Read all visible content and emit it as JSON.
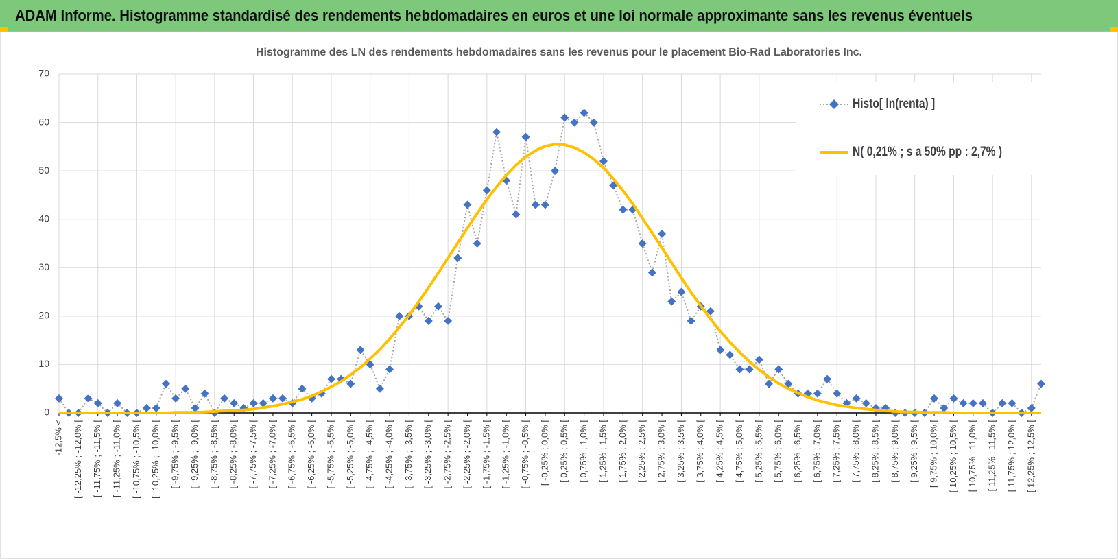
{
  "header": {
    "title": "ADAM Informe. Histogramme standardisé des rendements hebdomadaires en euros et une loi normale approximante sans les revenus éventuels"
  },
  "chart_data": {
    "type": "line",
    "title": "Histogramme des LN des rendements hebdomadaires sans les revenus pour le placement Bio-Rad Laboratories Inc.",
    "categories": [
      "-12,5% <",
      null,
      "[ -12,25% ; -12,0% [",
      null,
      "[ -11,75% ; -11,5% [",
      null,
      "[ -11,25% ; -11,0% [",
      null,
      "[ -10,75% ; -10,5% [",
      null,
      "[ -10,25% ; -10,0% [",
      null,
      "[ -9,75% ; -9,5% [",
      null,
      "[ -9,25% ; -9,0% [",
      null,
      "[ -8,75% ; -8,5% [",
      null,
      "[ -8,25% ; -8,0% [",
      null,
      "[ -7,75% ; -7,5% [",
      null,
      "[ -7,25% ; -7,0% [",
      null,
      "[ -6,75% ; -6,5% [",
      null,
      "[ -6,25% ; -6,0% [",
      null,
      "[ -5,75% ; -5,5% [",
      null,
      "[ -5,25% ; -5,0% [",
      null,
      "[ -4,75% ; -4,5% [",
      null,
      "[ -4,25% ; -4,0% [",
      null,
      "[ -3,75% ; -3,5% [",
      null,
      "[ -3,25% ; -3,0% [",
      null,
      "[ -2,75% ; -2,5% [",
      null,
      "[ -2,25% ; -2,0% [",
      null,
      "[ -1,75% ; -1,5% [",
      null,
      "[ -1,25% ; -1,0% [",
      null,
      "[ -0,75% ; -0,5% [",
      null,
      "[ -0,25% ; 0,0% [",
      null,
      "[ 0,25% ; 0,5% [",
      null,
      "[ 0,75% ; 1,0% [",
      null,
      "[ 1,25% ; 1,5% [",
      null,
      "[ 1,75% ; 2,0% [",
      null,
      "[ 2,25% ; 2,5% [",
      null,
      "[ 2,75% ; 3,0% [",
      null,
      "[ 3,25% ; 3,5% [",
      null,
      "[ 3,75% ; 4,0% [",
      null,
      "[ 4,25% ; 4,5% [",
      null,
      "[ 4,75% ; 5,0% [",
      null,
      "[ 5,25% ; 5,5% [",
      null,
      "[ 5,75% ; 6,0% [",
      null,
      "[ 6,25% ; 6,5% [",
      null,
      "[ 6,75% ; 7,0% [",
      null,
      "[ 7,25% ; 7,5% [",
      null,
      "[ 7,75% ; 8,0% [",
      null,
      "[ 8,25% ; 8,5% [",
      null,
      "[ 8,75% ; 9,0% [",
      null,
      "[ 9,25% ; 9,5% [",
      null,
      "[ 9,75% ; 10,0% [",
      null,
      "[ 10,25% ; 10,5% [",
      null,
      "[ 10,75% ; 11,0% [",
      null,
      "[ 11,25% ; 11,5% [",
      null,
      "[ 11,75% ; 12,0% [",
      null,
      "[ 12,25% ; 12,5% [",
      null
    ],
    "series": [
      {
        "name": "Histo[ ln(renta) ]",
        "color": "#4472c4",
        "line_color": "#a5a5a5",
        "line_style": "dotted",
        "marker": "diamond",
        "values": [
          3,
          0,
          0,
          3,
          2,
          0,
          2,
          0,
          0,
          1,
          1,
          6,
          3,
          5,
          1,
          4,
          0,
          3,
          2,
          1,
          2,
          2,
          3,
          3,
          2,
          5,
          3,
          4,
          7,
          7,
          6,
          13,
          10,
          5,
          9,
          20,
          20,
          22,
          19,
          22,
          19,
          32,
          43,
          35,
          46,
          58,
          48,
          41,
          57,
          43,
          43,
          50,
          61,
          60,
          62,
          60,
          52,
          47,
          42,
          42,
          35,
          29,
          37,
          23,
          25,
          19,
          22,
          21,
          13,
          12,
          9,
          9,
          11,
          6,
          9,
          6,
          4,
          4,
          4,
          7,
          4,
          2,
          3,
          2,
          1,
          1,
          0,
          0,
          0,
          0,
          3,
          1,
          3,
          2,
          2,
          2,
          0,
          2,
          2,
          0,
          1,
          6
        ]
      },
      {
        "name": "N( 0,21% ; s a 50% pp : 2,7% )",
        "color": "#ffc000",
        "line_color": "#ffc000",
        "line_style": "solid",
        "marker": "none",
        "values": [
          0,
          0,
          0,
          0,
          0,
          0,
          0,
          0,
          0,
          0,
          0,
          0,
          0.1,
          0.1,
          0.1,
          0.2,
          0.3,
          0.4,
          0.5,
          0.6,
          0.8,
          1.1,
          1.4,
          1.8,
          2.3,
          2.8,
          3.5,
          4.4,
          5.4,
          6.5,
          7.9,
          9.4,
          11.2,
          13.1,
          15.3,
          17.7,
          20.2,
          23.0,
          25.9,
          28.9,
          32.0,
          35.1,
          38.2,
          41.2,
          44.1,
          46.7,
          49.1,
          51.2,
          52.9,
          54.2,
          55.1,
          55.5,
          55.4,
          54.8,
          53.8,
          52.4,
          50.6,
          48.4,
          45.9,
          43.2,
          40.2,
          37.2,
          34.1,
          31.0,
          27.9,
          24.9,
          22.1,
          19.4,
          16.9,
          14.6,
          12.5,
          10.6,
          8.9,
          7.4,
          6.1,
          5.0,
          4.1,
          3.3,
          2.6,
          2.1,
          1.6,
          1.3,
          1.0,
          0.8,
          0.6,
          0.4,
          0.3,
          0.2,
          0.2,
          0.1,
          0.1,
          0.1,
          0,
          0,
          0,
          0,
          0,
          0,
          0,
          0,
          0,
          0
        ]
      }
    ],
    "ylim": [
      0,
      70
    ],
    "yticks": [
      0,
      10,
      20,
      30,
      40,
      50,
      60,
      70
    ],
    "grid": true,
    "legend": "upper right"
  }
}
